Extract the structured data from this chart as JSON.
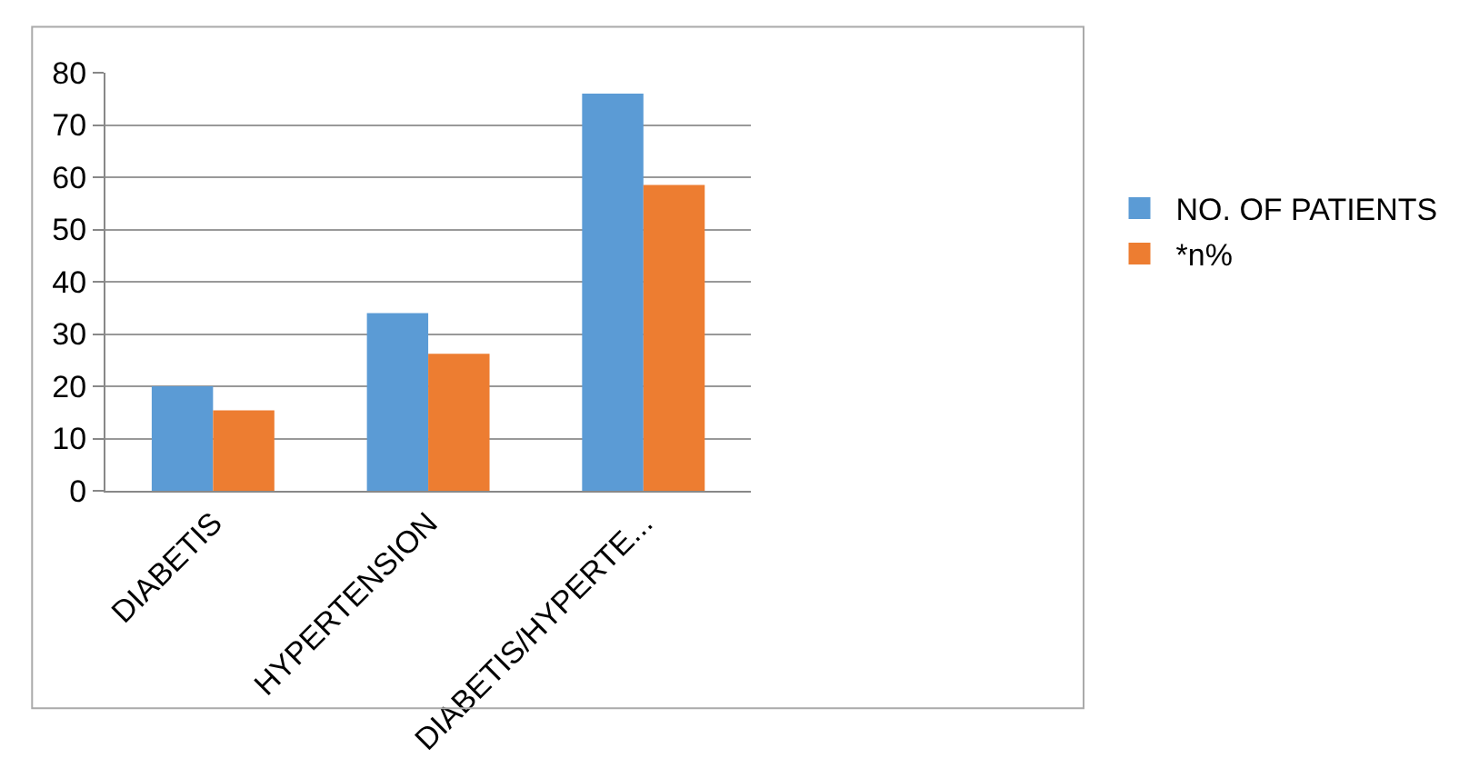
{
  "chart_data": {
    "type": "bar",
    "categories": [
      "DIABETIS",
      "HYPERTENSION",
      "DIABETIS/HYPERTE..."
    ],
    "series": [
      {
        "name": "NO. OF PATIENTS",
        "color": "#5b9bd5",
        "values": [
          20,
          34,
          76
        ]
      },
      {
        "name": "*n%",
        "color": "#ed7d31",
        "values": [
          15.4,
          26.2,
          58.5
        ]
      }
    ],
    "ylim": [
      0,
      80
    ],
    "yticks": [
      0,
      10,
      20,
      30,
      40,
      50,
      60,
      70,
      80
    ],
    "grid": "y",
    "legend": "right"
  }
}
